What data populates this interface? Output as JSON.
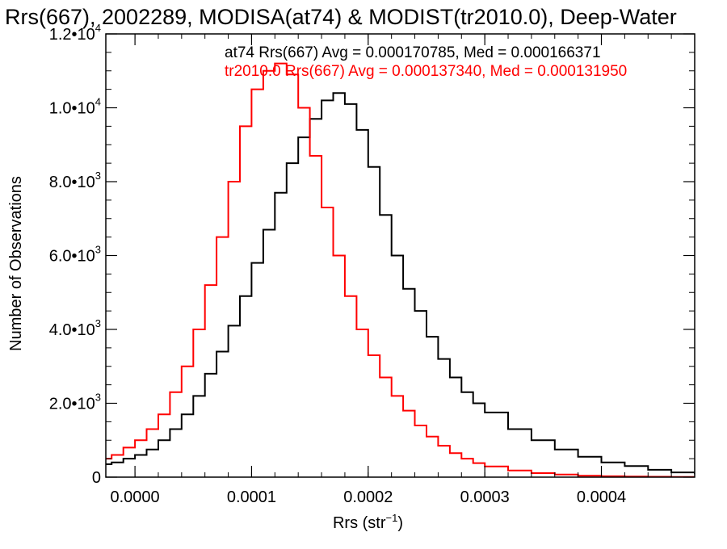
{
  "chart_data": {
    "type": "line",
    "step": true,
    "title": "Rrs(667), 2002289, MODISA(at74) & MODIST(tr2010.0), Deep-Water",
    "xlabel": {
      "main": "Rrs (str",
      "sup": "−1",
      "tail": ")"
    },
    "ylabel": "Number of Observations",
    "xlim": [
      -2.5e-05,
      0.00048
    ],
    "ylim": [
      0,
      12000
    ],
    "grid": false,
    "x_ticks": [
      {
        "value": 0.0,
        "label": "0.0000"
      },
      {
        "value": 0.0001,
        "label": "0.0001"
      },
      {
        "value": 0.0002,
        "label": "0.0002"
      },
      {
        "value": 0.0003,
        "label": "0.0003"
      },
      {
        "value": 0.0004,
        "label": "0.0004"
      }
    ],
    "y_ticks": [
      {
        "value": 0,
        "mant": "0",
        "exp": ""
      },
      {
        "value": 2000,
        "mant": "2.0•10",
        "exp": "3"
      },
      {
        "value": 4000,
        "mant": "4.0•10",
        "exp": "3"
      },
      {
        "value": 6000,
        "mant": "6.0•10",
        "exp": "3"
      },
      {
        "value": 8000,
        "mant": "8.0•10",
        "exp": "3"
      },
      {
        "value": 10000,
        "mant": "1.0•10",
        "exp": "4"
      },
      {
        "value": 12000,
        "mant": "1.2•10",
        "exp": "4"
      }
    ],
    "annotations": [
      {
        "text": "at74 Rrs(667) Avg = 0.000170785, Med = 0.000166371",
        "color": "#000000"
      },
      {
        "text": "tr2010.0 Rrs(667) Avg = 0.000137340, Med = 0.000131950",
        "color": "#ff0000"
      }
    ],
    "series": [
      {
        "color": "#000000",
        "x": [
          -2.5e-05,
          -2e-05,
          -1e-05,
          0.0,
          1e-05,
          2e-05,
          3e-05,
          4e-05,
          5e-05,
          6e-05,
          7e-05,
          8e-05,
          9e-05,
          0.0001,
          0.00011,
          0.00012,
          0.00013,
          0.00014,
          0.00015,
          0.00016,
          0.00017,
          0.00018,
          0.00019,
          0.0002,
          0.00021,
          0.00022,
          0.00023,
          0.00024,
          0.00025,
          0.00026,
          0.00027,
          0.00028,
          0.00029,
          0.0003,
          0.00032,
          0.00034,
          0.00036,
          0.00038,
          0.0004,
          0.00042,
          0.00044,
          0.00046,
          0.00048
        ],
        "y": [
          350,
          400,
          500,
          600,
          750,
          1000,
          1300,
          1700,
          2200,
          2800,
          3400,
          4100,
          4900,
          5800,
          6700,
          7700,
          8500,
          9200,
          9700,
          10200,
          10400,
          10100,
          9400,
          8400,
          7100,
          6000,
          5100,
          4500,
          3800,
          3200,
          2700,
          2300,
          2000,
          1750,
          1300,
          1000,
          750,
          550,
          400,
          300,
          200,
          130,
          80
        ]
      },
      {
        "color": "#ff0000",
        "x": [
          -2.5e-05,
          -2e-05,
          -1e-05,
          0.0,
          1e-05,
          2e-05,
          3e-05,
          4e-05,
          5e-05,
          6e-05,
          7e-05,
          8e-05,
          9e-05,
          0.0001,
          0.00011,
          0.00012,
          0.00013,
          0.00014,
          0.00015,
          0.00016,
          0.00017,
          0.00018,
          0.00019,
          0.0002,
          0.00021,
          0.00022,
          0.00023,
          0.00024,
          0.00025,
          0.00026,
          0.00027,
          0.00028,
          0.00029,
          0.0003,
          0.00032,
          0.00034,
          0.00036,
          0.00038,
          0.0004,
          0.00042,
          0.00044,
          0.00046,
          0.00048
        ],
        "y": [
          500,
          600,
          800,
          1000,
          1300,
          1700,
          2300,
          3000,
          4000,
          5200,
          6500,
          8000,
          9500,
          10500,
          11000,
          11200,
          10900,
          10000,
          8700,
          7300,
          6000,
          4900,
          4000,
          3300,
          2700,
          2200,
          1800,
          1400,
          1100,
          850,
          650,
          500,
          380,
          290,
          180,
          110,
          70,
          40,
          25,
          15,
          10,
          5,
          3
        ]
      }
    ]
  }
}
